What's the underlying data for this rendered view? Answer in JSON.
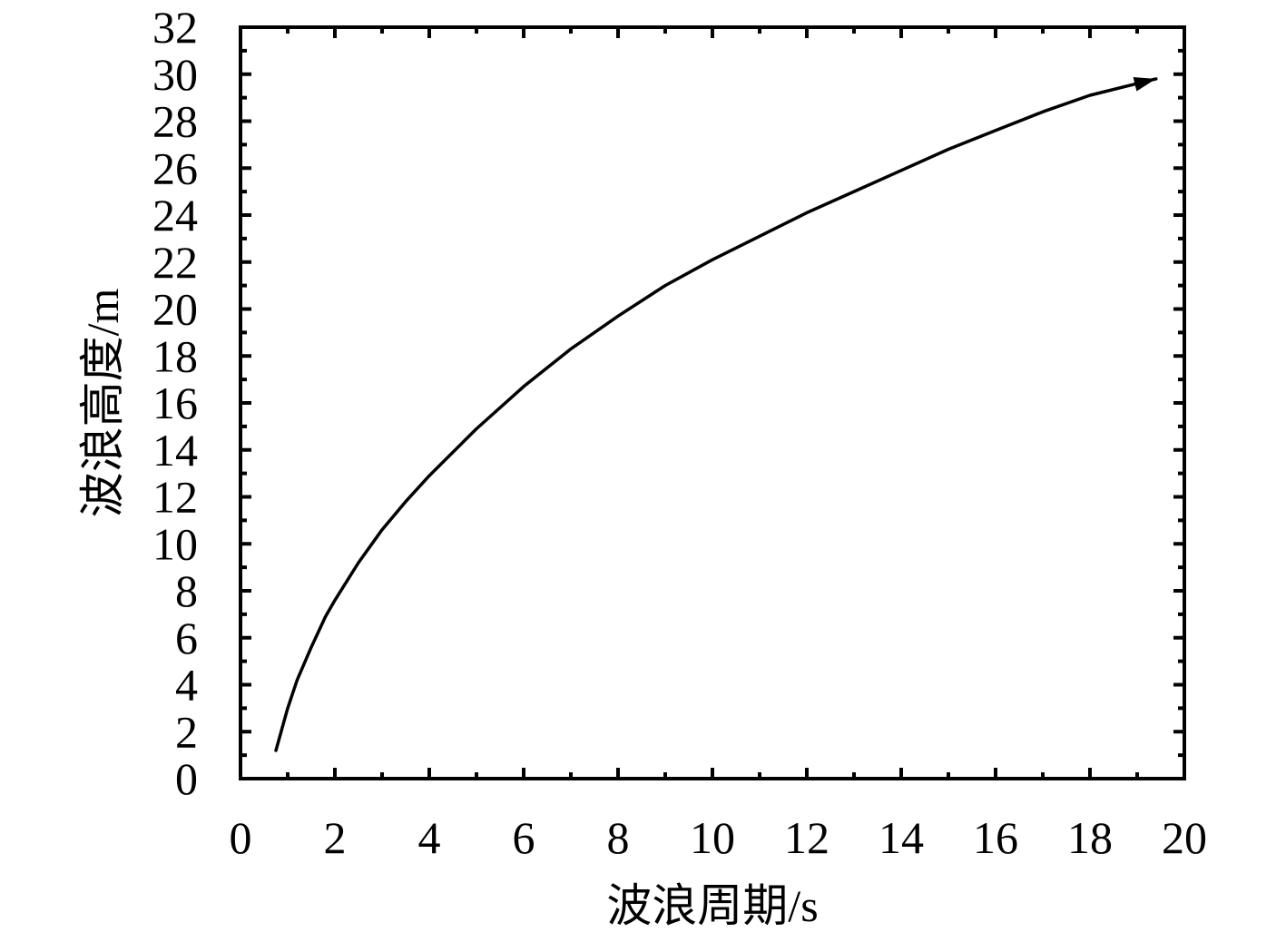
{
  "chart_data": {
    "type": "line",
    "title": "",
    "xlabel": "波浪周期/s",
    "ylabel": "波浪高度/m",
    "xlim": [
      0,
      20
    ],
    "ylim": [
      0,
      32
    ],
    "xticks": [
      "0",
      "2",
      "4",
      "6",
      "8",
      "10",
      "12",
      "14",
      "16",
      "18",
      "20"
    ],
    "yticks": [
      "0",
      "2",
      "4",
      "6",
      "8",
      "10",
      "12",
      "14",
      "16",
      "18",
      "20",
      "22",
      "24",
      "26",
      "28",
      "30",
      "32"
    ],
    "grid": false,
    "legend": "none",
    "series": [
      {
        "x": [
          0.75,
          1.0,
          1.2,
          1.5,
          1.8,
          2.0,
          2.5,
          3.0,
          3.5,
          4.0,
          5.0,
          6.0,
          7.0,
          8.0,
          9.0,
          10.0,
          11.0,
          12.0,
          13.0,
          14.0,
          15.0,
          16.0,
          17.0,
          18.0,
          19.0,
          19.4
        ],
        "y": [
          1.2,
          3.0,
          4.2,
          5.6,
          6.9,
          7.6,
          9.2,
          10.6,
          11.8,
          12.9,
          14.9,
          16.7,
          18.3,
          19.7,
          21.0,
          22.1,
          23.1,
          24.1,
          25.0,
          25.9,
          26.8,
          27.6,
          28.4,
          29.1,
          29.6,
          29.8
        ],
        "color": "#000000",
        "end_marker": "arrow"
      }
    ]
  }
}
